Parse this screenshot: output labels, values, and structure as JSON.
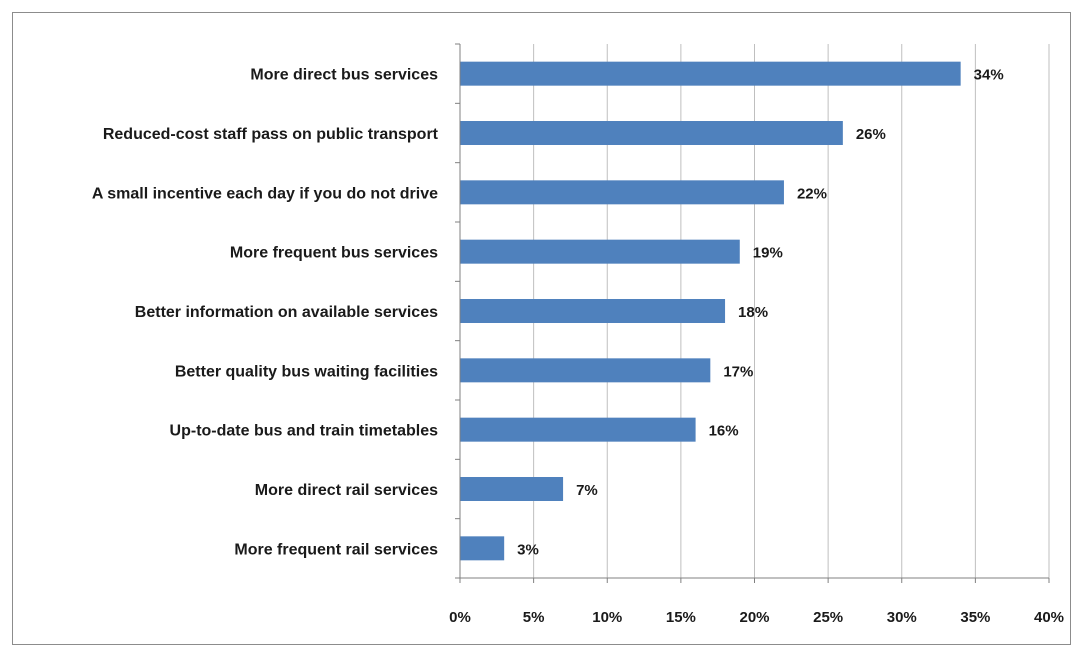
{
  "chart_data": {
    "type": "bar",
    "orientation": "horizontal",
    "title": "",
    "xlabel": "",
    "ylabel": "",
    "categories": [
      "More direct bus services",
      "Reduced-cost staff pass on public transport",
      "A small incentive each day if you do not drive",
      "More frequent bus services",
      "Better information on available services",
      "Better quality bus waiting facilities",
      "Up-to-date bus and train timetables",
      "More direct rail services",
      "More frequent rail services"
    ],
    "values": [
      34,
      26,
      22,
      19,
      18,
      17,
      16,
      7,
      3
    ],
    "value_labels": [
      "34%",
      "26%",
      "22%",
      "19%",
      "18%",
      "17%",
      "16%",
      "7%",
      "3%"
    ],
    "xlim": [
      0,
      40
    ],
    "x_ticks": [
      0,
      5,
      10,
      15,
      20,
      25,
      30,
      35,
      40
    ],
    "x_tick_labels": [
      "0%",
      "5%",
      "10%",
      "15%",
      "20%",
      "25%",
      "30%",
      "35%",
      "40%"
    ],
    "grid": true,
    "legend": "none",
    "bar_color": "#4f81bd",
    "grid_color": "#bfbfbf",
    "axis_color": "#808080"
  }
}
